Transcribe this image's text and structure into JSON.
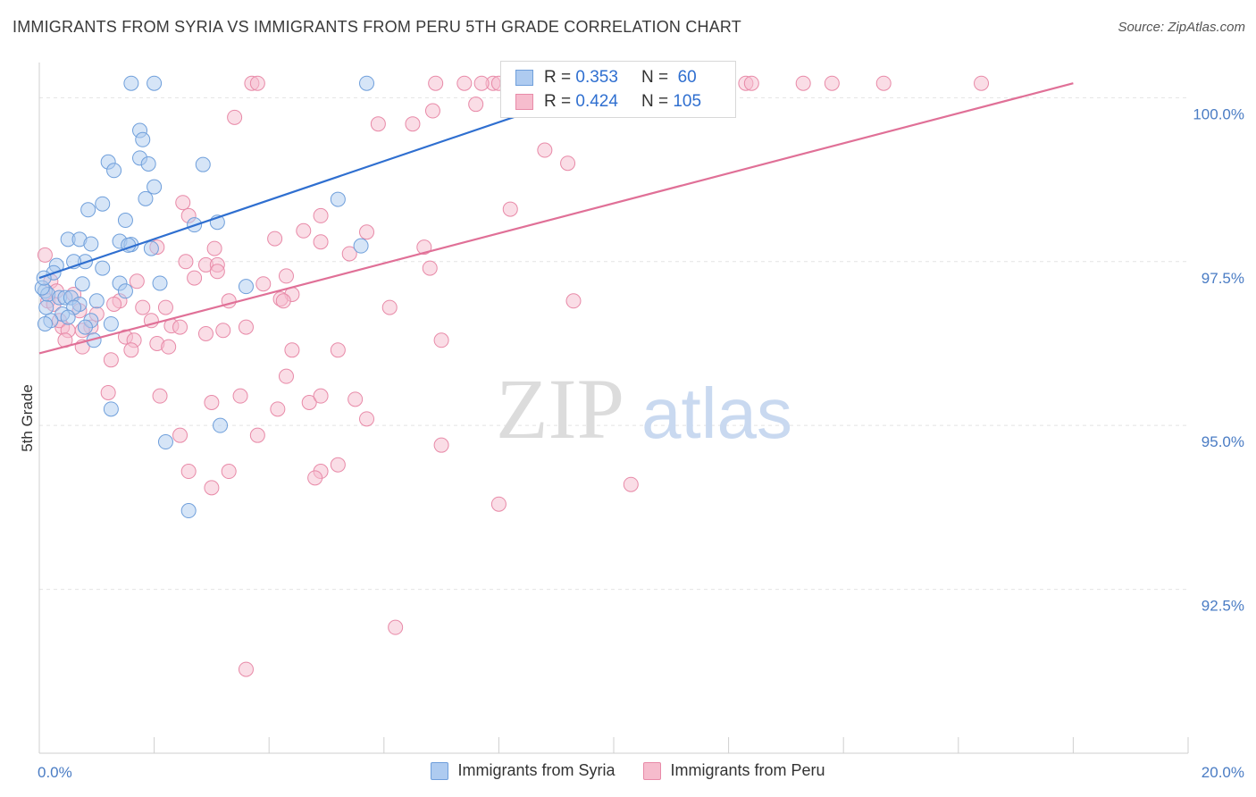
{
  "title": "IMMIGRANTS FROM SYRIA VS IMMIGRANTS FROM PERU 5TH GRADE CORRELATION CHART",
  "source": "Source: ZipAtlas.com",
  "watermark": {
    "zip": "ZIP",
    "atlas": "atlas"
  },
  "legend": {
    "syria": {
      "r_label": "R =",
      "r_value": "0.353",
      "n_label": "N =",
      "n_value": "60"
    },
    "peru": {
      "r_label": "R =",
      "r_value": "0.424",
      "n_label": "N =",
      "n_value": "105"
    }
  },
  "bottom_legend": {
    "syria": "Immigrants from Syria",
    "peru": "Immigrants from Peru"
  },
  "colors": {
    "syria_fill": "#aecbf0",
    "syria_stroke": "#6f9fdb",
    "syria_line": "#2f6fd0",
    "peru_fill": "#f6bccd",
    "peru_stroke": "#e88aa8",
    "peru_line": "#e07097",
    "tick": "#4a7cc4"
  },
  "chart_data": {
    "type": "scatter",
    "ylabel": "5th Grade",
    "xlim": [
      0,
      20
    ],
    "ylim": [
      90.0,
      100.4
    ],
    "x_tick_labels": [
      {
        "x": 0,
        "label": "0.0%"
      },
      {
        "x": 20,
        "label": "20.0%"
      }
    ],
    "y_ticks": [
      {
        "y": 100.0,
        "label": "100.0%"
      },
      {
        "y": 97.5,
        "label": "97.5%"
      },
      {
        "y": 95.0,
        "label": "95.0%"
      },
      {
        "y": 92.5,
        "label": "92.5%"
      }
    ],
    "grid": true,
    "series": [
      {
        "name": "Immigrants from Syria",
        "trend": {
          "x": [
            0,
            10
          ],
          "y": [
            97.25,
            100.22
          ]
        },
        "points": [
          [
            1.6,
            100.22
          ],
          [
            2.0,
            100.22
          ],
          [
            5.7,
            100.22
          ],
          [
            9.6,
            100.22
          ],
          [
            1.75,
            99.5
          ],
          [
            1.8,
            99.36
          ],
          [
            1.75,
            99.08
          ],
          [
            1.9,
            98.99
          ],
          [
            2.85,
            98.98
          ],
          [
            1.2,
            99.02
          ],
          [
            1.3,
            98.89
          ],
          [
            2.0,
            98.64
          ],
          [
            1.85,
            98.46
          ],
          [
            1.1,
            98.38
          ],
          [
            0.85,
            98.29
          ],
          [
            5.2,
            98.45
          ],
          [
            1.5,
            98.13
          ],
          [
            3.1,
            98.1
          ],
          [
            2.7,
            98.06
          ],
          [
            0.5,
            97.84
          ],
          [
            0.7,
            97.84
          ],
          [
            0.9,
            97.77
          ],
          [
            1.4,
            97.81
          ],
          [
            1.6,
            97.76
          ],
          [
            1.55,
            97.75
          ],
          [
            1.95,
            97.7
          ],
          [
            5.6,
            97.74
          ],
          [
            0.8,
            97.5
          ],
          [
            0.6,
            97.5
          ],
          [
            0.3,
            97.44
          ],
          [
            0.25,
            97.33
          ],
          [
            1.1,
            97.4
          ],
          [
            0.75,
            97.16
          ],
          [
            1.4,
            97.17
          ],
          [
            2.1,
            97.17
          ],
          [
            3.6,
            97.12
          ],
          [
            1.5,
            97.05
          ],
          [
            0.1,
            97.05
          ],
          [
            0.15,
            97.0
          ],
          [
            0.35,
            96.95
          ],
          [
            0.45,
            96.95
          ],
          [
            0.55,
            96.95
          ],
          [
            1.0,
            96.9
          ],
          [
            0.7,
            96.85
          ],
          [
            0.6,
            96.8
          ],
          [
            0.4,
            96.7
          ],
          [
            0.5,
            96.65
          ],
          [
            0.2,
            96.6
          ],
          [
            0.1,
            96.55
          ],
          [
            0.9,
            96.6
          ],
          [
            1.25,
            96.55
          ],
          [
            0.8,
            96.5
          ],
          [
            0.95,
            96.3
          ],
          [
            1.25,
            95.25
          ],
          [
            3.15,
            95.0
          ],
          [
            2.2,
            94.75
          ],
          [
            2.6,
            93.7
          ],
          [
            0.05,
            97.1
          ],
          [
            0.12,
            96.8
          ],
          [
            0.08,
            97.25
          ]
        ]
      },
      {
        "name": "Immigrants from Peru",
        "trend": {
          "x": [
            0,
            18
          ],
          "y": [
            96.1,
            100.22
          ]
        },
        "points": [
          [
            3.7,
            100.22
          ],
          [
            3.8,
            100.22
          ],
          [
            6.9,
            100.22
          ],
          [
            7.4,
            100.22
          ],
          [
            7.9,
            100.22
          ],
          [
            8.0,
            100.22
          ],
          [
            7.7,
            100.22
          ],
          [
            11.5,
            100.22
          ],
          [
            12.3,
            100.22
          ],
          [
            12.4,
            100.22
          ],
          [
            13.3,
            100.22
          ],
          [
            13.8,
            100.22
          ],
          [
            14.7,
            100.22
          ],
          [
            16.4,
            100.22
          ],
          [
            6.85,
            99.8
          ],
          [
            7.6,
            99.9
          ],
          [
            3.4,
            99.7
          ],
          [
            5.9,
            99.6
          ],
          [
            6.5,
            99.6
          ],
          [
            8.8,
            99.2
          ],
          [
            9.2,
            99.0
          ],
          [
            8.2,
            98.3
          ],
          [
            2.5,
            98.4
          ],
          [
            2.6,
            98.2
          ],
          [
            4.9,
            98.2
          ],
          [
            4.6,
            97.97
          ],
          [
            5.7,
            97.95
          ],
          [
            4.1,
            97.85
          ],
          [
            4.9,
            97.8
          ],
          [
            2.05,
            97.72
          ],
          [
            3.05,
            97.7
          ],
          [
            6.7,
            97.72
          ],
          [
            5.4,
            97.62
          ],
          [
            2.55,
            97.5
          ],
          [
            2.9,
            97.45
          ],
          [
            3.1,
            97.45
          ],
          [
            3.1,
            97.35
          ],
          [
            6.8,
            97.4
          ],
          [
            4.3,
            97.28
          ],
          [
            1.7,
            97.2
          ],
          [
            2.7,
            97.25
          ],
          [
            3.9,
            97.16
          ],
          [
            4.4,
            97.0
          ],
          [
            4.2,
            96.93
          ],
          [
            4.25,
            96.9
          ],
          [
            3.3,
            96.9
          ],
          [
            1.4,
            96.9
          ],
          [
            1.3,
            96.85
          ],
          [
            1.8,
            96.8
          ],
          [
            2.2,
            96.8
          ],
          [
            6.1,
            96.8
          ],
          [
            9.3,
            96.9
          ],
          [
            1.95,
            96.6
          ],
          [
            2.3,
            96.52
          ],
          [
            2.45,
            96.5
          ],
          [
            3.6,
            96.5
          ],
          [
            3.2,
            96.45
          ],
          [
            2.9,
            96.4
          ],
          [
            0.9,
            96.5
          ],
          [
            0.75,
            96.45
          ],
          [
            0.4,
            96.5
          ],
          [
            7.0,
            96.3
          ],
          [
            1.5,
            96.35
          ],
          [
            1.65,
            96.3
          ],
          [
            2.05,
            96.25
          ],
          [
            2.25,
            96.2
          ],
          [
            1.6,
            96.15
          ],
          [
            0.75,
            96.2
          ],
          [
            4.4,
            96.15
          ],
          [
            5.2,
            96.15
          ],
          [
            1.25,
            96.0
          ],
          [
            4.3,
            95.75
          ],
          [
            1.2,
            95.5
          ],
          [
            2.1,
            95.45
          ],
          [
            3.5,
            95.45
          ],
          [
            3.0,
            95.35
          ],
          [
            4.7,
            95.35
          ],
          [
            4.9,
            95.45
          ],
          [
            5.5,
            95.4
          ],
          [
            4.15,
            95.25
          ],
          [
            5.7,
            95.1
          ],
          [
            3.8,
            94.85
          ],
          [
            2.45,
            94.85
          ],
          [
            7.0,
            94.7
          ],
          [
            3.3,
            94.3
          ],
          [
            2.6,
            94.3
          ],
          [
            5.2,
            94.4
          ],
          [
            4.9,
            94.3
          ],
          [
            4.8,
            94.2
          ],
          [
            10.3,
            94.1
          ],
          [
            3.0,
            94.05
          ],
          [
            8.0,
            93.8
          ],
          [
            6.2,
            91.92
          ],
          [
            3.6,
            91.28
          ],
          [
            0.1,
            97.6
          ],
          [
            0.2,
            97.2
          ],
          [
            0.15,
            96.9
          ],
          [
            0.35,
            96.6
          ],
          [
            0.5,
            96.45
          ],
          [
            0.3,
            97.05
          ],
          [
            0.6,
            97.0
          ],
          [
            1.0,
            96.7
          ],
          [
            0.45,
            96.3
          ],
          [
            0.25,
            96.85
          ],
          [
            0.7,
            96.75
          ]
        ]
      }
    ]
  }
}
